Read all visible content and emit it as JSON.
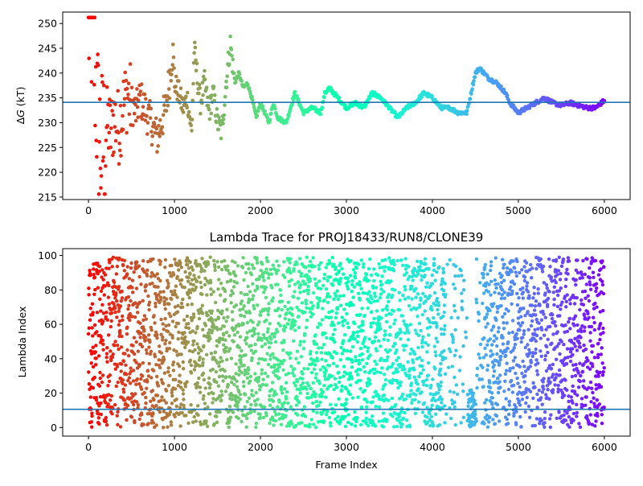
{
  "chart_data": [
    {
      "type": "scatter",
      "title": "",
      "xlabel": "",
      "ylabel": "ΔG (kT)",
      "ylabel_math": {
        "prefix": "Δ",
        "var": "G",
        "suffix": " (kT)"
      },
      "xlim": [
        -300,
        6300
      ],
      "ylim": [
        214.5,
        252.3
      ],
      "xticks": [
        "0",
        "1000",
        "2000",
        "3000",
        "4000",
        "5000",
        "6000"
      ],
      "yticks": [
        "215",
        "220",
        "225",
        "230",
        "235",
        "240",
        "245",
        "250"
      ],
      "hline": 234.1,
      "hline_color": "#1f77b4",
      "colormap": "rainbow",
      "trace": [
        [
          0,
          250
        ],
        [
          50,
          250
        ],
        [
          60,
          245
        ],
        [
          80,
          240
        ],
        [
          90,
          236
        ],
        [
          100,
          232
        ],
        [
          120,
          228
        ],
        [
          150,
          224
        ],
        [
          180,
          226
        ],
        [
          220,
          230
        ],
        [
          260,
          228
        ],
        [
          300,
          231
        ],
        [
          350,
          229
        ],
        [
          400,
          233
        ],
        [
          450,
          236
        ],
        [
          500,
          234
        ],
        [
          550,
          232
        ],
        [
          600,
          235
        ],
        [
          700,
          231
        ],
        [
          800,
          227
        ],
        [
          900,
          233
        ],
        [
          950,
          240
        ],
        [
          980,
          245
        ],
        [
          1000,
          238
        ],
        [
          1050,
          236
        ],
        [
          1100,
          233
        ],
        [
          1150,
          235
        ],
        [
          1200,
          228
        ],
        [
          1230,
          245
        ],
        [
          1260,
          240
        ],
        [
          1300,
          234
        ],
        [
          1350,
          238
        ],
        [
          1400,
          232
        ],
        [
          1450,
          236
        ],
        [
          1500,
          230
        ],
        [
          1550,
          228
        ],
        [
          1600,
          238
        ],
        [
          1650,
          246
        ],
        [
          1700,
          238
        ],
        [
          1750,
          240
        ],
        [
          1800,
          237
        ],
        [
          1850,
          238
        ],
        [
          1900,
          235
        ],
        [
          1950,
          231
        ],
        [
          2000,
          234
        ],
        [
          2050,
          232
        ],
        [
          2100,
          230
        ],
        [
          2150,
          234
        ],
        [
          2200,
          231
        ],
        [
          2300,
          230
        ],
        [
          2400,
          236
        ],
        [
          2500,
          232
        ],
        [
          2600,
          233
        ],
        [
          2700,
          232
        ],
        [
          2750,
          236
        ],
        [
          2800,
          237
        ],
        [
          2900,
          235
        ],
        [
          3000,
          233
        ],
        [
          3100,
          234
        ],
        [
          3200,
          233
        ],
        [
          3300,
          236
        ],
        [
          3400,
          235
        ],
        [
          3500,
          233
        ],
        [
          3600,
          231
        ],
        [
          3700,
          233
        ],
        [
          3800,
          234
        ],
        [
          3900,
          236
        ],
        [
          4000,
          235
        ],
        [
          4100,
          233
        ],
        [
          4200,
          233
        ],
        [
          4300,
          232
        ],
        [
          4400,
          232
        ],
        [
          4500,
          240
        ],
        [
          4550,
          241
        ],
        [
          4650,
          239
        ],
        [
          4750,
          238
        ],
        [
          4850,
          236
        ],
        [
          4900,
          234
        ],
        [
          5000,
          232
        ],
        [
          5100,
          233
        ],
        [
          5200,
          234
        ],
        [
          5300,
          235
        ],
        [
          5400,
          234
        ],
        [
          5500,
          233.5
        ],
        [
          5600,
          234
        ],
        [
          5700,
          233.5
        ],
        [
          5800,
          233
        ],
        [
          5900,
          233
        ],
        [
          6000,
          234.5
        ]
      ]
    },
    {
      "type": "scatter",
      "title": "Lambda Trace for PROJ18433/RUN8/CLONE39",
      "xlabel": "Frame Index",
      "ylabel": "Lambda Index",
      "xlim": [
        -300,
        6300
      ],
      "ylim": [
        -5,
        104
      ],
      "xticks": [
        "0",
        "1000",
        "2000",
        "3000",
        "4000",
        "5000",
        "6000"
      ],
      "yticks": [
        "0",
        "20",
        "40",
        "60",
        "80",
        "100"
      ],
      "hline": 10.6,
      "hline_color": "#1f77b4",
      "colormap": "rainbow",
      "x_range": [
        0,
        6000
      ],
      "y_range": [
        0,
        99
      ]
    }
  ]
}
